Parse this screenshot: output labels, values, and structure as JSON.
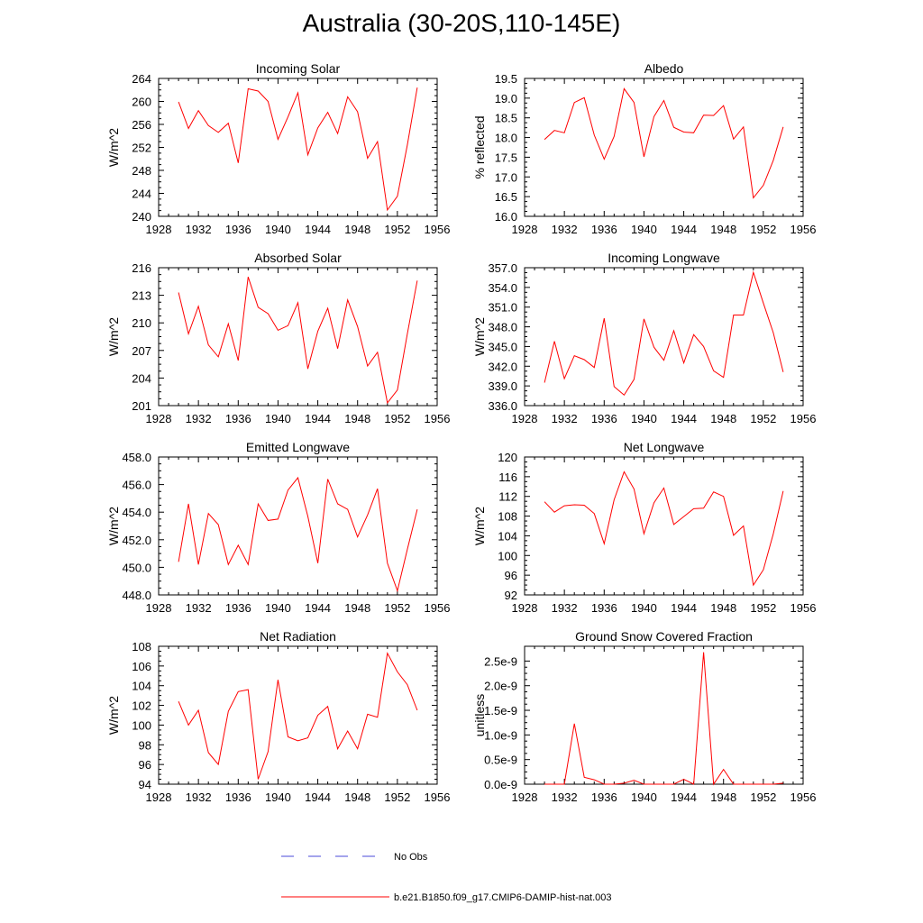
{
  "title": "Australia (30-20S,110-145E)",
  "colors": {
    "model": "#ff0000",
    "obs": "#4a4ad8",
    "axis": "#000000"
  },
  "legend": {
    "items": [
      {
        "label": "No Obs",
        "style": "dashed",
        "color": "#4a4ad8"
      },
      {
        "label": "b.e21.B1850.f09_g17.CMIP6-DAMIP-hist-nat.003",
        "style": "solid",
        "color": "#ff0000"
      }
    ]
  },
  "chart_data": [
    {
      "type": "line",
      "title": "Incoming Solar",
      "ylabel": "W/m^2",
      "xlim": [
        1928,
        1956
      ],
      "xticks": [
        "1928",
        "1932",
        "1936",
        "1940",
        "1944",
        "1948",
        "1952",
        "1956"
      ],
      "ylim": [
        240,
        264
      ],
      "yticks": [
        "240",
        "244",
        "248",
        "252",
        "256",
        "260",
        "264"
      ],
      "x": [
        1930,
        1931,
        1932,
        1933,
        1934,
        1935,
        1936,
        1937,
        1938,
        1939,
        1940,
        1941,
        1942,
        1943,
        1944,
        1945,
        1946,
        1947,
        1948,
        1949,
        1950,
        1951,
        1952,
        1953,
        1954
      ],
      "series": [
        {
          "values": [
            259.9,
            255.3,
            258.4,
            255.8,
            254.6,
            256.2,
            249.3,
            262.2,
            261.8,
            260.0,
            253.4,
            257.3,
            261.5,
            250.7,
            255.4,
            258.1,
            254.4,
            260.8,
            258.2,
            250.1,
            253.0,
            241.1,
            243.5,
            252.4,
            262.4
          ]
        }
      ]
    },
    {
      "type": "line",
      "title": "Albedo",
      "ylabel": "% reflected",
      "xlim": [
        1928,
        1956
      ],
      "xticks": [
        "1928",
        "1932",
        "1936",
        "1940",
        "1944",
        "1948",
        "1952",
        "1956"
      ],
      "ylim": [
        16.0,
        19.5
      ],
      "yticks": [
        "16.0",
        "16.5",
        "17.0",
        "17.5",
        "18.0",
        "18.5",
        "19.0",
        "19.5"
      ],
      "x": [
        1930,
        1931,
        1932,
        1933,
        1934,
        1935,
        1936,
        1937,
        1938,
        1939,
        1940,
        1941,
        1942,
        1943,
        1944,
        1945,
        1946,
        1947,
        1948,
        1949,
        1950,
        1951,
        1952,
        1953,
        1954
      ],
      "series": [
        {
          "values": [
            17.95,
            18.18,
            18.12,
            18.89,
            19.01,
            18.06,
            17.45,
            18.03,
            19.24,
            18.89,
            17.51,
            18.53,
            18.94,
            18.26,
            18.14,
            18.12,
            18.57,
            18.56,
            18.81,
            17.96,
            18.27,
            16.47,
            16.79,
            17.42,
            18.27
          ]
        }
      ]
    },
    {
      "type": "line",
      "title": "Absorbed Solar",
      "ylabel": "W/m^2",
      "xlim": [
        1928,
        1956
      ],
      "xticks": [
        "1928",
        "1932",
        "1936",
        "1940",
        "1944",
        "1948",
        "1952",
        "1956"
      ],
      "ylim": [
        201,
        216
      ],
      "yticks": [
        "201",
        "204",
        "207",
        "210",
        "213",
        "216"
      ],
      "x": [
        1930,
        1931,
        1932,
        1933,
        1934,
        1935,
        1936,
        1937,
        1938,
        1939,
        1940,
        1941,
        1942,
        1943,
        1944,
        1945,
        1946,
        1947,
        1948,
        1949,
        1950,
        1951,
        1952,
        1953,
        1954
      ],
      "series": [
        {
          "values": [
            213.3,
            208.8,
            211.8,
            207.6,
            206.3,
            209.9,
            205.9,
            215.0,
            211.7,
            211.0,
            209.2,
            209.7,
            212.2,
            205.0,
            209.1,
            211.6,
            207.2,
            212.5,
            209.6,
            205.3,
            206.8,
            201.3,
            202.7,
            208.8,
            214.6
          ]
        }
      ]
    },
    {
      "type": "line",
      "title": "Incoming Longwave",
      "ylabel": "W/m^2",
      "xlim": [
        1928,
        1956
      ],
      "xticks": [
        "1928",
        "1932",
        "1936",
        "1940",
        "1944",
        "1948",
        "1952",
        "1956"
      ],
      "ylim": [
        336.0,
        357.0
      ],
      "yticks": [
        "336.0",
        "339.0",
        "342.0",
        "345.0",
        "348.0",
        "351.0",
        "354.0",
        "357.0"
      ],
      "x": [
        1930,
        1931,
        1932,
        1933,
        1934,
        1935,
        1936,
        1937,
        1938,
        1939,
        1940,
        1941,
        1942,
        1943,
        1944,
        1945,
        1946,
        1947,
        1948,
        1949,
        1950,
        1951,
        1952,
        1953,
        1954
      ],
      "series": [
        {
          "values": [
            339.5,
            345.8,
            340.1,
            343.6,
            343.0,
            341.8,
            349.3,
            338.9,
            337.6,
            340.0,
            349.2,
            344.9,
            342.9,
            347.4,
            342.5,
            346.8,
            345.0,
            341.3,
            340.3,
            349.8,
            349.8,
            356.3,
            351.6,
            347.1,
            341.1
          ]
        }
      ]
    },
    {
      "type": "line",
      "title": "Emitted Longwave",
      "ylabel": "W/m^2",
      "xlim": [
        1928,
        1956
      ],
      "xticks": [
        "1928",
        "1932",
        "1936",
        "1940",
        "1944",
        "1948",
        "1952",
        "1956"
      ],
      "ylim": [
        448.0,
        458.0
      ],
      "yticks": [
        "448.0",
        "450.0",
        "452.0",
        "454.0",
        "456.0",
        "458.0"
      ],
      "x": [
        1930,
        1931,
        1932,
        1933,
        1934,
        1935,
        1936,
        1937,
        1938,
        1939,
        1940,
        1941,
        1942,
        1943,
        1944,
        1945,
        1946,
        1947,
        1948,
        1949,
        1950,
        1951,
        1952,
        1953,
        1954
      ],
      "series": [
        {
          "values": [
            450.4,
            454.6,
            450.2,
            453.9,
            453.1,
            450.2,
            451.6,
            450.2,
            454.6,
            453.4,
            453.5,
            455.6,
            456.5,
            453.7,
            450.3,
            456.4,
            454.6,
            454.2,
            452.2,
            453.8,
            455.7,
            450.3,
            448.3,
            451.3,
            454.2
          ]
        }
      ]
    },
    {
      "type": "line",
      "title": "Net Longwave",
      "ylabel": "W/m^2",
      "xlim": [
        1928,
        1956
      ],
      "xticks": [
        "1928",
        "1932",
        "1936",
        "1940",
        "1944",
        "1948",
        "1952",
        "1956"
      ],
      "ylim": [
        92,
        120
      ],
      "yticks": [
        "92",
        "96",
        "100",
        "104",
        "108",
        "112",
        "116",
        "120"
      ],
      "x": [
        1930,
        1931,
        1932,
        1933,
        1934,
        1935,
        1936,
        1937,
        1938,
        1939,
        1940,
        1941,
        1942,
        1943,
        1944,
        1945,
        1946,
        1947,
        1948,
        1949,
        1950,
        1951,
        1952,
        1953,
        1954
      ],
      "series": [
        {
          "values": [
            110.9,
            108.8,
            110.1,
            110.3,
            110.2,
            108.5,
            102.4,
            111.3,
            117.0,
            113.5,
            104.4,
            110.7,
            113.7,
            106.3,
            107.9,
            109.5,
            109.6,
            112.9,
            112.0,
            104.1,
            106.0,
            94.0,
            97.1,
            104.4,
            113.1
          ]
        }
      ]
    },
    {
      "type": "line",
      "title": "Net Radiation",
      "ylabel": "W/m^2",
      "xlim": [
        1928,
        1956
      ],
      "xticks": [
        "1928",
        "1932",
        "1936",
        "1940",
        "1944",
        "1948",
        "1952",
        "1956"
      ],
      "ylim": [
        94,
        108
      ],
      "yticks": [
        "94",
        "96",
        "98",
        "100",
        "102",
        "104",
        "106",
        "108"
      ],
      "x": [
        1930,
        1931,
        1932,
        1933,
        1934,
        1935,
        1936,
        1937,
        1938,
        1939,
        1940,
        1941,
        1942,
        1943,
        1944,
        1945,
        1946,
        1947,
        1948,
        1949,
        1950,
        1951,
        1952,
        1953,
        1954
      ],
      "series": [
        {
          "values": [
            102.4,
            100.0,
            101.5,
            97.2,
            96.0,
            101.4,
            103.4,
            103.6,
            94.5,
            97.3,
            104.6,
            98.8,
            98.4,
            98.7,
            101.0,
            101.9,
            97.6,
            99.4,
            97.6,
            101.1,
            100.8,
            107.3,
            105.4,
            104.1,
            101.5
          ]
        }
      ]
    },
    {
      "type": "line",
      "title": "Ground Snow Covered Fraction",
      "ylabel": "unitless",
      "xlim": [
        1928,
        1956
      ],
      "xticks": [
        "1928",
        "1932",
        "1936",
        "1940",
        "1944",
        "1948",
        "1952",
        "1956"
      ],
      "ylim": [
        0,
        2.8e-09
      ],
      "yticks": [
        "0.0e-9",
        "0.5e-9",
        "1.0e-9",
        "1.5e-9",
        "2.0e-9",
        "2.5e-9"
      ],
      "ytick_values": [
        0,
        5e-10,
        1e-09,
        1.5e-09,
        2e-09,
        2.5e-09
      ],
      "x": [
        1930,
        1931,
        1932,
        1933,
        1934,
        1935,
        1936,
        1937,
        1938,
        1939,
        1940,
        1941,
        1942,
        1943,
        1944,
        1945,
        1946,
        1947,
        1948,
        1949,
        1950,
        1951,
        1952,
        1953,
        1954
      ],
      "series": [
        {
          "values": [
            0,
            0,
            0,
            1.23e-09,
            1.4e-10,
            9e-11,
            0,
            0,
            2e-11,
            8e-11,
            0,
            0,
            0,
            0,
            1e-10,
            0,
            2.68e-09,
            0,
            3e-10,
            0,
            0,
            0,
            0,
            0,
            2e-11
          ]
        }
      ]
    }
  ]
}
